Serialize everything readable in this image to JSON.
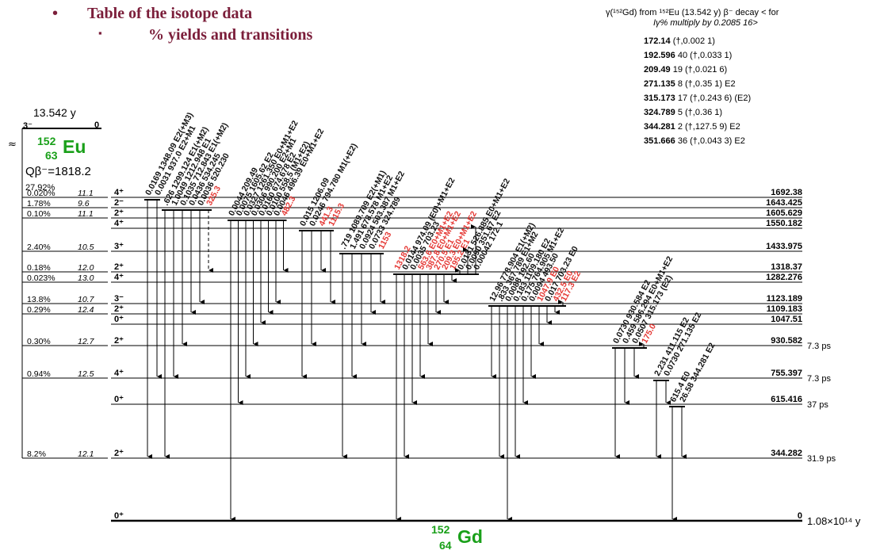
{
  "header": {
    "bullet1": "Table of the isotope data",
    "bullet2": "% yields and transitions",
    "bullet1_marker": "•",
    "bullet2_marker": "▪"
  },
  "reference": {
    "title_line1": "γ(¹⁵²Gd) from ¹⁵²Eu (13.542 y) β⁻ decay < for",
    "title_line2": "Iγ% multiply by 0.2085 16>",
    "lines": [
      {
        "energy": "172.14",
        "rest": " (†,0.002 1)"
      },
      {
        "energy": "192.596",
        "rest": " 40 (†,0.033 1)"
      },
      {
        "energy": "209.49",
        "rest": " 19 (†,0.021 6)"
      },
      {
        "energy": "271.135",
        "rest": " 8 (†,0.35 1) E2"
      },
      {
        "energy": "315.173",
        "rest": " 17 (†,0.243 6) (E2)"
      },
      {
        "energy": "324.789",
        "rest": " 5 (†,0.36 1)"
      },
      {
        "energy": "344.281",
        "rest": " 2 (†,127.5 9) E2"
      },
      {
        "energy": "351.666",
        "rest": " 36 (†,0.043 3) E2"
      }
    ]
  },
  "parent": {
    "halflife": "13.542 y",
    "spin": "3⁻",
    "energy": "0",
    "mass": "152",
    "z": "63",
    "symbol": "Eu",
    "q_value": "Qβ⁻=1818.2",
    "total_feed": "27.92%"
  },
  "daughter": {
    "mass": "152",
    "z": "64",
    "symbol": "Gd",
    "ground_halflife": "1.08×10¹⁴ y"
  },
  "levels": [
    {
      "energy": "1692.38",
      "spin": "4⁺",
      "feed": "0.020%",
      "logft": "11.1",
      "halflife": ""
    },
    {
      "energy": "1643.425",
      "spin": "2⁻",
      "feed": "1.78%",
      "logft": "9.6",
      "halflife": ""
    },
    {
      "energy": "1605.629",
      "spin": "2⁺",
      "feed": "0.10%",
      "logft": "11.1",
      "halflife": ""
    },
    {
      "energy": "1550.182",
      "spin": "4⁺",
      "feed": "",
      "logft": "",
      "halflife": ""
    },
    {
      "energy": "1433.975",
      "spin": "3⁺",
      "feed": "2.40%",
      "logft": "10.5",
      "halflife": ""
    },
    {
      "energy": "1318.37",
      "spin": "2⁺",
      "feed": "0.18%",
      "logft": "12.0",
      "halflife": ""
    },
    {
      "energy": "1282.276",
      "spin": "4⁺",
      "feed": "0.023%",
      "logft": "13.0",
      "halflife": ""
    },
    {
      "energy": "1123.189",
      "spin": "3⁻",
      "feed": "13.8%",
      "logft": "10.7",
      "halflife": ""
    },
    {
      "energy": "1109.183",
      "spin": "2⁺",
      "feed": "0.29%",
      "logft": "12.4",
      "halflife": ""
    },
    {
      "energy": "1047.51",
      "spin": "0⁺",
      "feed": "",
      "logft": "",
      "halflife": ""
    },
    {
      "energy": "930.582",
      "spin": "2⁺",
      "feed": "0.30%",
      "logft": "12.7",
      "halflife": "7.3 ps"
    },
    {
      "energy": "755.397",
      "spin": "4⁺",
      "feed": "0.94%",
      "logft": "12.5",
      "halflife": "7.3 ps"
    },
    {
      "energy": "615.416",
      "spin": "0⁺",
      "feed": "",
      "logft": "",
      "halflife": "37 ps"
    },
    {
      "energy": "344.282",
      "spin": "2⁺",
      "feed": "8.2%",
      "logft": "12.1",
      "halflife": "31.9 ps"
    },
    {
      "energy": "0",
      "spin": "0⁺",
      "feed": "",
      "logft": "",
      "halflife": ""
    }
  ],
  "groups": [
    {
      "gammas": [
        {
          "label": "0.0169 1348.09 E2(+M3)",
          "red": false
        },
        {
          "label": "0.0031 937.0 E2+M1",
          "red": false
        }
      ]
    },
    {
      "gammas": [
        {
          "label": ".626 1299.124 E1(+M2)",
          "red": false
        },
        {
          "label": "1.0049 1212.948 E1",
          "red": false
        },
        {
          "label": "0.1035 712.843 E1(+M2)",
          "red": false
        },
        {
          "label": "0.0436 534.245",
          "red": false
        },
        {
          "label": "0.0036 520.230",
          "red": false
        },
        {
          "label": "325.3",
          "red": true
        }
      ]
    },
    {
      "gammas": [
        {
          "label": "0.0044 209.49",
          "red": false
        },
        {
          "label": "0.0075 1605.62 E2",
          "red": false
        },
        {
          "label": "0.0327 1261.350 E0+M1+E2",
          "red": false
        },
        {
          "label": "0.0306 990.200 E2+M1",
          "red": false
        },
        {
          "label": "0.0160 674.678 E2",
          "red": false
        },
        {
          "label": "0.0100 558.5 (M1+E2)",
          "red": false
        },
        {
          "label": "0.0046 496.39 E0+M1+E2",
          "red": false
        },
        {
          "label": "482.3",
          "red": true
        }
      ]
    },
    {
      "gammas": [
        {
          "label": "0.015 1206.09",
          "red": false
        },
        {
          "label": "0.0246 794.780 M1(+E2)",
          "red": false
        },
        {
          "label": "441.3",
          "red": true
        },
        {
          "label": "1115.3",
          "red": true
        }
      ]
    },
    {
      "gammas": [
        {
          "label": ".719 1089.709 E2(+M1)",
          "red": false
        },
        {
          "label": "1.491 678.578 M1+E2",
          "red": false
        },
        {
          "label": "0.0924 503.387 M1+E2",
          "red": false
        },
        {
          "label": "0.0733 324.789",
          "red": false
        },
        {
          "label": "1153",
          "red": true
        }
      ]
    },
    {
      "gammas": [
        {
          "label": "1318.2",
          "red": true
        },
        {
          "label": "0.0144 974.09 (E0)+M1+E2",
          "red": false
        },
        {
          "label": "0.0035 703.23",
          "red": false
        },
        {
          "label": "563.6 E0+M1+E2",
          "red": true
        },
        {
          "label": "387.8 E0+M1+E2",
          "red": true
        },
        {
          "label": "270.5 E1",
          "red": true
        },
        {
          "label": "209.3 E0+M1+E2",
          "red": true
        },
        {
          "label": "195.2 E1",
          "red": true
        },
        {
          "label": "0.0131 526.885 E0+M1+E2",
          "red": false
        },
        {
          "label": "0.0090 351.67 E2",
          "red": false
        },
        {
          "label": "0.00042 172.1",
          "red": false
        }
      ]
    },
    {
      "gammas": [
        {
          "label": "12.96 778.904 E1(+M2)",
          "red": false
        },
        {
          "label": ".833 367.789 E1+M2",
          "red": false
        },
        {
          "label": "0.0088 192.60",
          "red": false
        },
        {
          "label": "0.183 1109.180 E2",
          "red": false
        },
        {
          "label": "0.175 764.905 M1+E2",
          "red": false
        },
        {
          "label": "0.0094 493.50",
          "red": false
        },
        {
          "label": "1047.9 E0",
          "red": true
        },
        {
          "label": "0.017 703.23 E0",
          "red": false
        },
        {
          "label": "432.5 E0",
          "red": true
        },
        {
          "label": "117.3 E2",
          "red": true
        }
      ]
    },
    {
      "gammas": [
        {
          "label": "0.0730 930.584 E2",
          "red": false
        },
        {
          "label": "0.459 586.294 E0+M1+E2",
          "red": false
        },
        {
          "label": "0.0507 315.173 (E2)",
          "red": false
        },
        {
          "label": "175.0",
          "red": true
        }
      ]
    },
    {
      "gammas": [
        {
          "label": "2.231 411.115 E2",
          "red": false
        },
        {
          "label": "0.0730 271.135 E2",
          "red": false
        }
      ]
    },
    {
      "gammas": [
        {
          "label": "615.4 E0",
          "red": false
        },
        {
          "label": "26.58 344.281 E2",
          "red": false
        }
      ]
    }
  ]
}
